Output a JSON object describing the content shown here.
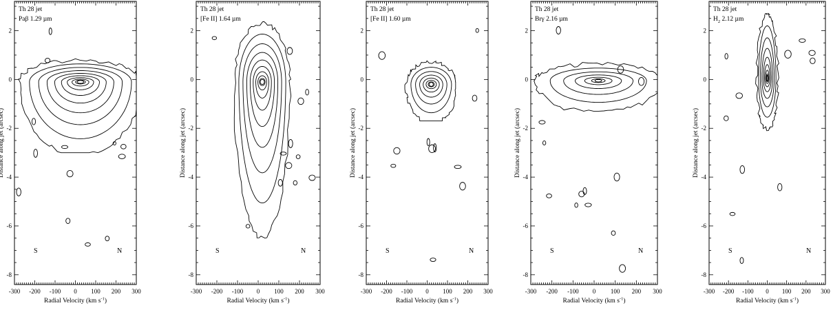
{
  "chart_data": [
    {
      "type": "contour",
      "title": "Th 28 jet",
      "line_label": "Paβ 1.29 µm",
      "xlabel": "Radial Velocity (km s",
      "xlabel_sup": "-1",
      "xlabel_close": ")",
      "ylabel": "Distance along jet (arcsec)",
      "xlim": [
        -300,
        300
      ],
      "ylim": [
        -8.4,
        3.2
      ],
      "xticks": [
        "-300",
        "-200",
        "-100",
        "0",
        "100",
        "200",
        "300"
      ],
      "yticks": [
        "2",
        "0",
        "-2",
        "-4",
        "-6",
        "-8"
      ],
      "left_marker": "S",
      "right_marker": "N",
      "peak": {
        "v": 25,
        "d": -0.1
      },
      "contour_levels": 10,
      "outer_extent": {
        "v_min": -300,
        "v_max": 300,
        "d_min": -3.0,
        "d_max": 0.9
      }
    },
    {
      "type": "contour",
      "title": "Th 28 jet",
      "line_label": "[Fe II] 1.64 µm",
      "xlabel": "Radial Velocity (km s",
      "xlabel_sup": "-1",
      "xlabel_close": ")",
      "ylabel": "Distance along jet (arcsec)",
      "xlim": [
        -300,
        300
      ],
      "ylim": [
        -8.4,
        3.2
      ],
      "xticks": [
        "-300",
        "-200",
        "-100",
        "0",
        "100",
        "200",
        "300"
      ],
      "yticks": [
        "2",
        "0",
        "-2",
        "-4",
        "-6",
        "-8"
      ],
      "left_marker": "S",
      "right_marker": "N",
      "peak": {
        "v": 20,
        "d": -0.1
      },
      "contour_levels": 10,
      "outer_extent": {
        "v_min": -120,
        "v_max": 160,
        "d_min": -6.5,
        "d_max": 2.4
      }
    },
    {
      "type": "contour",
      "title": "Th 28 jet",
      "line_label": "[Fe II] 1.60 µm",
      "xlabel": "Radial Velocity (km s",
      "xlabel_sup": "-1",
      "xlabel_close": ")",
      "ylabel": "Distance along jet (arcsec)",
      "xlim": [
        -300,
        300
      ],
      "ylim": [
        -8.4,
        3.2
      ],
      "xticks": [
        "-300",
        "-200",
        "-100",
        "0",
        "100",
        "200",
        "300"
      ],
      "yticks": [
        "2",
        "0",
        "-2",
        "-4",
        "-6",
        "-8"
      ],
      "left_marker": "S",
      "right_marker": "N",
      "peak": {
        "v": 20,
        "d": -0.2
      },
      "contour_levels": 8,
      "outer_extent": {
        "v_min": -110,
        "v_max": 140,
        "d_min": -1.7,
        "d_max": 0.9
      }
    },
    {
      "type": "contour",
      "title": "Th 28 jet",
      "line_label": "Brγ 2.16 µm",
      "xlabel": "Radial Velocity (km s",
      "xlabel_sup": "-1",
      "xlabel_close": ")",
      "ylabel": "Distance along jet (arcsec)",
      "xlim": [
        -300,
        300
      ],
      "ylim": [
        -8.4,
        3.2
      ],
      "xticks": [
        "-300",
        "-200",
        "-100",
        "0",
        "100",
        "200",
        "300"
      ],
      "yticks": [
        "2",
        "0",
        "-2",
        "-4",
        "-6",
        "-8"
      ],
      "left_marker": "S",
      "right_marker": "N",
      "peak": {
        "v": 20,
        "d": -0.05
      },
      "contour_levels": 7,
      "outer_extent": {
        "v_min": -300,
        "v_max": 300,
        "d_min": -1.3,
        "d_max": 0.7
      }
    },
    {
      "type": "contour",
      "title": "Th 28 jet",
      "line_label": "H",
      "line_label_sub": "2",
      "line_label_rest": " 2.12 µm",
      "xlabel": "Radial Velocity (km s",
      "xlabel_sup": "-1",
      "xlabel_close": ")",
      "ylabel": "Distance along jet (arcsec)",
      "xlim": [
        -300,
        300
      ],
      "ylim": [
        -8.4,
        3.2
      ],
      "xticks": [
        "-300",
        "-200",
        "-100",
        "0",
        "100",
        "200",
        "300"
      ],
      "yticks": [
        "2",
        "0",
        "-2",
        "-4",
        "-6",
        "-8"
      ],
      "left_marker": "S",
      "right_marker": "N",
      "peak": {
        "v": 0,
        "d": 0.05
      },
      "contour_levels": 9,
      "outer_extent": {
        "v_min": -60,
        "v_max": 60,
        "d_min": -2.1,
        "d_max": 2.7
      }
    }
  ]
}
